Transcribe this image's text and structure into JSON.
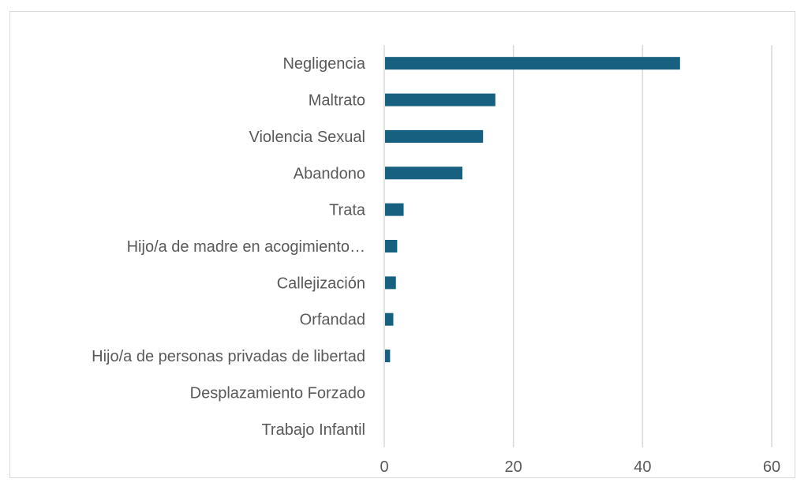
{
  "chart_data": {
    "type": "bar",
    "orientation": "horizontal",
    "title": "",
    "xlabel": "",
    "ylabel": "",
    "categories": [
      "Negligencia",
      "Maltrato",
      "Violencia Sexual",
      "Abandono",
      "Trata",
      "Hijo/a de madre en acogimiento…",
      "Callejización",
      "Orfandad",
      "Hijo/a de personas privadas de libertad",
      "Desplazamiento Forzado",
      "Trabajo Infantil"
    ],
    "values": [
      45.8,
      17.2,
      15.3,
      12.1,
      3.0,
      2.0,
      1.8,
      1.4,
      0.9,
      0,
      0
    ],
    "xlim": [
      0,
      60
    ],
    "xticks": [
      "0",
      "20",
      "40",
      "60"
    ],
    "xtick_values": [
      0,
      20,
      40,
      60
    ],
    "grid": true,
    "legend": "none",
    "bar_color": "#17607f"
  }
}
